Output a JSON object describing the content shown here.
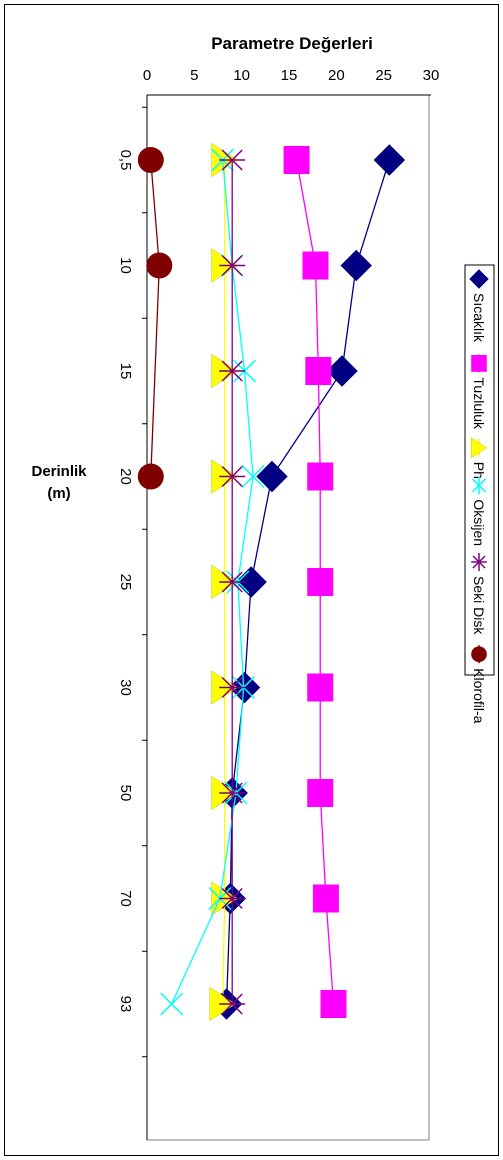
{
  "chart_data": {
    "type": "line",
    "title": "Parametre Değerleri",
    "ylabel_line1": "Derinlik",
    "ylabel_line2": "(m)",
    "xlim": [
      0,
      30
    ],
    "x_ticks": [
      "0",
      "5",
      "10",
      "15",
      "20",
      "25",
      "30"
    ],
    "categories": [
      "0,5",
      "10",
      "15",
      "20",
      "25",
      "30",
      "50",
      "70",
      "93"
    ],
    "series": [
      {
        "name": "Sıcaklık",
        "color": "#000080",
        "marker": "diamond",
        "values": [
          25.6,
          22.1,
          20.6,
          13.2,
          11.0,
          10.3,
          9.0,
          8.8,
          8.4
        ]
      },
      {
        "name": "Tuzluluk",
        "color": "#ff00ff",
        "marker": "square",
        "values": [
          15.8,
          17.8,
          18.1,
          18.3,
          18.3,
          18.3,
          18.3,
          18.9,
          19.7
        ]
      },
      {
        "name": "Ph",
        "color": "#ffff00",
        "marker": "triangle",
        "values": [
          8.2,
          8.2,
          8.2,
          8.2,
          8.2,
          8.2,
          8.2,
          8.2,
          8.0
        ]
      },
      {
        "name": "Oksijen",
        "color": "#00ffff",
        "marker": "x",
        "values": [
          8.0,
          9.0,
          10.3,
          11.2,
          9.6,
          10.2,
          9.4,
          7.7,
          2.6
        ]
      },
      {
        "name": "Seki Disk",
        "color": "#800080",
        "marker": "star",
        "values": [
          9.0,
          9.0,
          9.0,
          9.0,
          9.0,
          9.0,
          9.0,
          9.0,
          9.0
        ]
      },
      {
        "name": "Klorofil-a",
        "color": "#800000",
        "marker": "circle",
        "values": [
          0.4,
          1.3,
          null,
          0.4,
          null,
          null,
          null,
          null,
          null
        ]
      }
    ]
  }
}
